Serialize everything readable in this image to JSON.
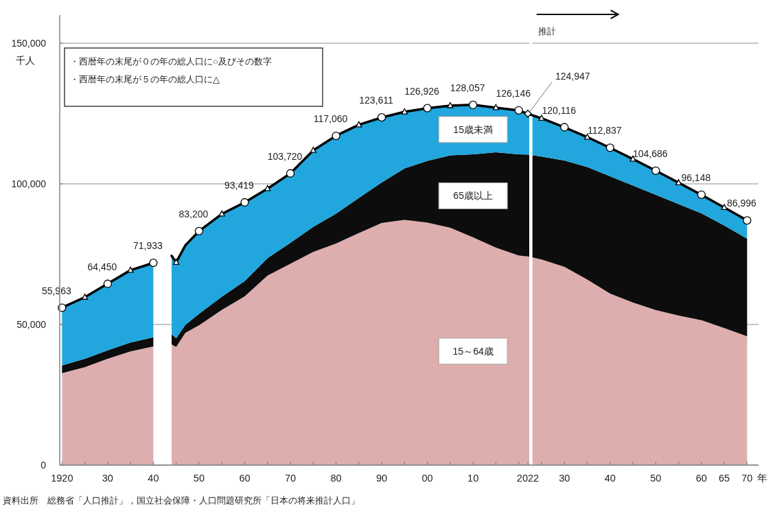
{
  "chart_data": {
    "type": "area",
    "stacked": true,
    "ylabel": "千人",
    "annotations": [
      "・西暦年の末尾が０の年の総人口に○及びその数字",
      "・西暦年の末尾が５の年の総人口に△",
      "推計",
      "資料出所　総務省「人口推計」，国立社会保障・人口問題研究所「日本の将来推計人口」"
    ],
    "x": [
      1920,
      1925,
      1930,
      1935,
      1940,
      1941,
      1942,
      1943,
      1944,
      1945,
      1947,
      1950,
      1955,
      1960,
      1965,
      1970,
      1975,
      1980,
      1985,
      1990,
      1995,
      2000,
      2005,
      2010,
      2015,
      2020,
      2022,
      2025,
      2030,
      2035,
      2040,
      2045,
      2050,
      2055,
      2060,
      2065,
      2070
    ],
    "series": [
      {
        "name": "15～64歳",
        "color": "#deaeae",
        "values": [
          32700,
          34800,
          37800,
          40400,
          42200,
          null,
          null,
          null,
          42900,
          42000,
          47000,
          49700,
          55200,
          60000,
          67400,
          71600,
          75800,
          78800,
          82500,
          86100,
          87200,
          86200,
          84400,
          81000,
          77300,
          74500,
          74200,
          73100,
          70500,
          66000,
          61000,
          57800,
          55100,
          53200,
          51500,
          48700,
          45800
        ]
      },
      {
        "name": "65歳以上",
        "color": "#0d0d0d",
        "values": [
          2700,
          3000,
          3000,
          3200,
          3200,
          null,
          null,
          null,
          3600,
          3100,
          2800,
          4100,
          4700,
          5400,
          6200,
          7400,
          8900,
          10600,
          12500,
          14400,
          18300,
          22000,
          25700,
          29500,
          33900,
          36000,
          36200,
          36600,
          37800,
          40000,
          41700,
          41600,
          41000,
          39600,
          38000,
          36500,
          34700
        ]
      },
      {
        "name": "15歳未満",
        "color": "#21a7dd",
        "line_style": "solid",
        "values": [
          20600,
          21900,
          23700,
          25700,
          26500,
          null,
          null,
          null,
          27900,
          27000,
          28300,
          29400,
          29400,
          28000,
          24700,
          24700,
          27200,
          27700,
          26000,
          23100,
          20100,
          18700,
          17700,
          17600,
          15900,
          15600,
          14500,
          13600,
          11800,
          10600,
          10100,
          9400,
          8600,
          7600,
          6600,
          6400,
          6500
        ]
      },
      {
        "type": "scatter",
        "marker": "circle",
        "color": "#ffffff",
        "x": [
          1920,
          1930,
          1940,
          1950,
          1960,
          1970,
          1980,
          1990,
          2000,
          2010,
          2020,
          2030,
          2040,
          2050,
          2060,
          2070
        ],
        "values": [
          55963,
          64450,
          71933,
          83200,
          93419,
          103720,
          117060,
          123611,
          126926,
          128057,
          126146,
          120116,
          112837,
          104686,
          96148,
          86996
        ],
        "value_labels": [
          "55,963",
          "64,450",
          "71,933",
          "83,200",
          "93,419",
          "103,720",
          "117,060",
          "123,611",
          "126,926",
          "128,057",
          "126,146",
          "120,116",
          "112,837",
          "104,686",
          "96,148",
          "86,996"
        ]
      },
      {
        "type": "scatter",
        "marker": "triangle",
        "color": "#ffffff",
        "x": [
          1925,
          1935,
          1945,
          1955,
          1965,
          1975,
          1985,
          1995,
          2005,
          2015,
          2025,
          2035,
          2045,
          2055,
          2065
        ],
        "values": [
          59700,
          69300,
          72100,
          89300,
          98300,
          111900,
          121000,
          125600,
          127800,
          127100,
          123300,
          116600,
          108800,
          100400,
          91600
        ]
      },
      {
        "type": "scatter",
        "marker": "diamond",
        "color": "#ffffff",
        "x": [
          2022
        ],
        "values": [
          124947
        ],
        "value_labels": [
          "124,947"
        ]
      }
    ],
    "bands": [
      {
        "axis": "x",
        "from": 2022.3,
        "to": 2023,
        "color": "#ffffff"
      }
    ],
    "xlim": [
      1919.5,
      2072.5
    ],
    "ylim": [
      0,
      160000
    ],
    "xticks": [
      {
        "value": 1920,
        "label": "1920"
      },
      {
        "value": 1925,
        "label": null
      },
      {
        "value": 1930,
        "label": "30"
      },
      {
        "value": 1935,
        "label": null
      },
      {
        "value": 1940,
        "label": "40"
      },
      {
        "value": 1945,
        "label": null
      },
      {
        "value": 1950,
        "label": "50"
      },
      {
        "value": 1955,
        "label": null
      },
      {
        "value": 1960,
        "label": "60"
      },
      {
        "value": 1965,
        "label": null
      },
      {
        "value": 1970,
        "label": "70"
      },
      {
        "value": 1975,
        "label": null
      },
      {
        "value": 1980,
        "label": "80"
      },
      {
        "value": 1985,
        "label": null
      },
      {
        "value": 1990,
        "label": "90"
      },
      {
        "value": 1995,
        "label": null
      },
      {
        "value": 2000,
        "label": "00"
      },
      {
        "value": 2005,
        "label": null
      },
      {
        "value": 2010,
        "label": "10"
      },
      {
        "value": 2015,
        "label": null
      },
      {
        "value": 2020,
        "label": null
      },
      {
        "value": 2022,
        "label": "2022"
      },
      {
        "value": 2025,
        "label": null
      },
      {
        "value": 2030,
        "label": "30"
      },
      {
        "value": 2035,
        "label": null
      },
      {
        "value": 2040,
        "label": "40"
      },
      {
        "value": 2045,
        "label": null
      },
      {
        "value": 2050,
        "label": "50"
      },
      {
        "value": 2055,
        "label": null
      },
      {
        "value": 2060,
        "label": "60"
      },
      {
        "value": 2065,
        "label": "65"
      },
      {
        "value": 2070,
        "label": "70"
      }
    ],
    "xlabel": "年",
    "yticks": [
      0,
      {
        "value": 50000,
        "label": "50,000"
      },
      {
        "value": 100000,
        "label": "100,000"
      },
      {
        "value": 150000,
        "label": "150,000"
      }
    ],
    "grid": "y"
  }
}
